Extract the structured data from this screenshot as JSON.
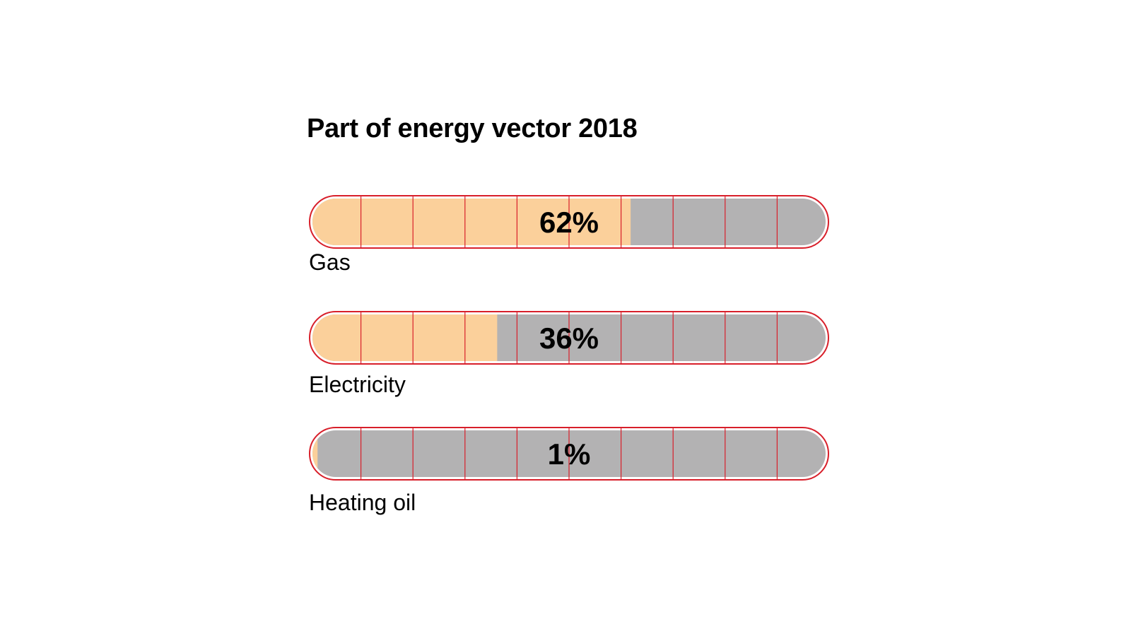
{
  "chart_data": {
    "type": "bar",
    "title": "Part of energy vector 2018",
    "orientation": "horizontal",
    "categories": [
      "Gas",
      "Electricity",
      "Heating oil"
    ],
    "values": [
      62,
      36,
      1
    ],
    "value_labels": [
      "62%",
      "36%",
      "1%"
    ],
    "unit": "%",
    "xlim": [
      0,
      100
    ],
    "grid": true,
    "grid_divisions": 10
  },
  "colors": {
    "fill": "#fbd09b",
    "track": "#b3b2b3",
    "outline": "#d81f2a",
    "grid": "#d81f2a",
    "text": "#000000"
  }
}
